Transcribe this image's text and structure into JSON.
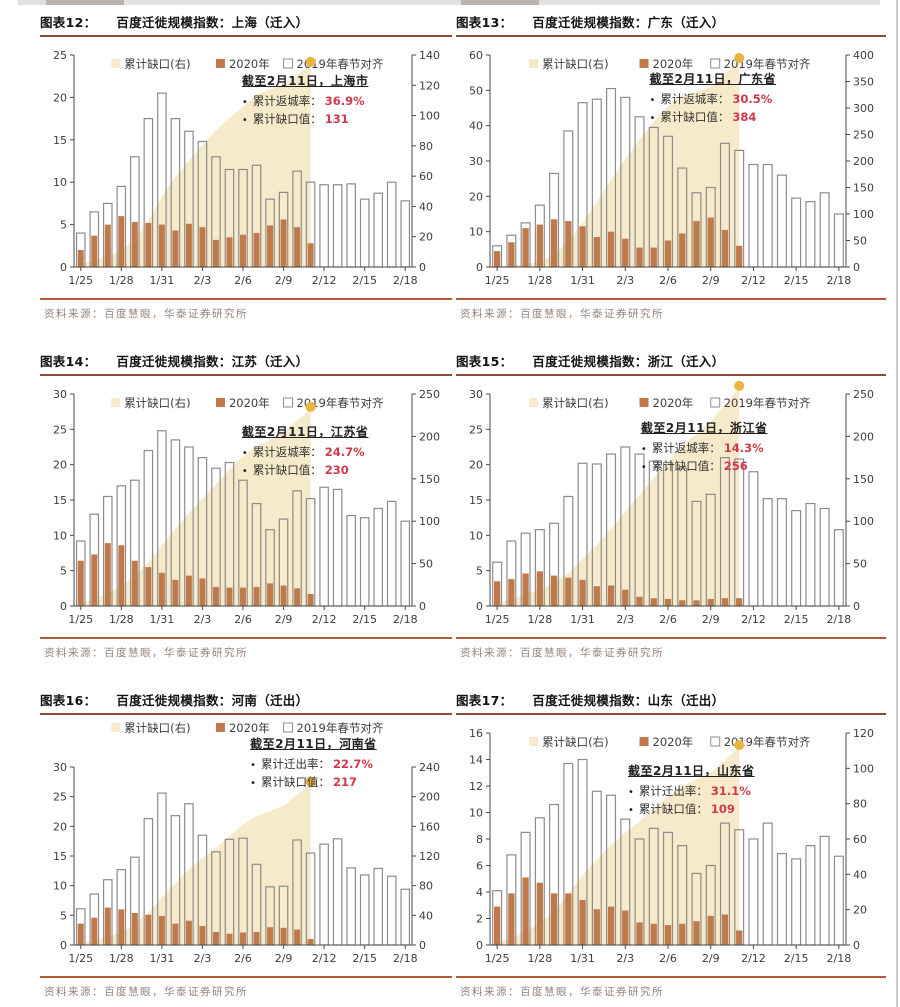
{
  "colors": {
    "bar2020": "#c07a4a",
    "bar2019_stroke": "#8c8c8c",
    "area": "#f7eaca",
    "dot": "#e9b53d",
    "accent_red": "#d03a4c",
    "axis": "#4a4a4a",
    "title_rule": "#8d4a38",
    "source_rule": "#b25a36"
  },
  "chart_shared": {
    "x_dates": [
      "1/25",
      "1/26",
      "1/27",
      "1/28",
      "1/29",
      "1/30",
      "1/31",
      "2/1",
      "2/2",
      "2/3",
      "2/4",
      "2/5",
      "2/6",
      "2/7",
      "2/8",
      "2/9",
      "2/10",
      "2/11",
      "2/12",
      "2/13",
      "2/14",
      "2/15",
      "2/16",
      "2/17",
      "2/18"
    ],
    "x_tick_labels": [
      "1/25",
      "1/28",
      "1/31",
      "2/3",
      "2/6",
      "2/9",
      "2/12",
      "2/15",
      "2/18"
    ],
    "legend": [
      "累计缺口(右)",
      "2020年",
      "2019年春节对齐"
    ],
    "bars_2020_span": "1/25–2/11",
    "area_derivation": "累计缺口 = cumsum(2019年春节对齐 - 2020年), 绘于右轴, 止于2/11"
  },
  "chart_data": [
    {
      "type": "bar",
      "fig_no": "图表12：",
      "title": "百度迁徙规模指数：上海（迁入）",
      "left_axis": {
        "min": 0,
        "max": 25,
        "step": 5
      },
      "right_axis": {
        "min": 0,
        "max": 140,
        "step": 20
      },
      "series": [
        {
          "name": "2019年春节对齐",
          "axis": "left",
          "style": "outline-bar",
          "values": [
            4,
            6.5,
            7.5,
            9.5,
            13,
            17.5,
            20.5,
            17.5,
            16,
            14.8,
            13,
            11.5,
            11.5,
            12,
            8,
            8.8,
            11.3,
            10,
            9.7,
            9.7,
            9.8,
            8,
            8.7,
            10,
            7.8
          ]
        },
        {
          "name": "2020年",
          "axis": "left",
          "style": "solid-bar",
          "values": [
            2,
            3.7,
            5,
            6,
            5.3,
            5.2,
            5,
            4.3,
            5.1,
            4.7,
            3.2,
            3.5,
            3.8,
            4,
            4.9,
            5.6,
            4.7,
            2.8
          ]
        },
        {
          "name": "累计缺口(右)",
          "axis": "right",
          "style": "area",
          "end_value_stated": 131
        }
      ],
      "annotation": {
        "header": "截至2月11日，上海市",
        "lines": [
          {
            "label": "累计返城率：",
            "value": "36.9%"
          },
          {
            "label": "累计缺口值：",
            "value": "131"
          }
        ]
      },
      "source": "资料来源：百度慧眼，华泰证券研究所"
    },
    {
      "type": "bar",
      "fig_no": "图表13：",
      "title": "百度迁徙规模指数：广东（迁入）",
      "left_axis": {
        "min": 0,
        "max": 60,
        "step": 10
      },
      "right_axis": {
        "min": 0,
        "max": 400,
        "step": 50
      },
      "series": [
        {
          "name": "2019年春节对齐",
          "axis": "left",
          "style": "outline-bar",
          "values": [
            6,
            9,
            12.5,
            17.5,
            26.5,
            38.5,
            46.5,
            47.5,
            50.5,
            48,
            42.5,
            39.5,
            37,
            28,
            21,
            22.5,
            35,
            33,
            29,
            29,
            26,
            19.5,
            18.5,
            21,
            15
          ]
        },
        {
          "name": "2020年",
          "axis": "left",
          "style": "solid-bar",
          "values": [
            4.5,
            7,
            11,
            12,
            13.5,
            13,
            11.5,
            8.5,
            10,
            8,
            5.5,
            5.5,
            7.5,
            9.5,
            13,
            14,
            10.5,
            6
          ]
        },
        {
          "name": "累计缺口(右)",
          "axis": "right",
          "style": "area",
          "end_value_stated": 384
        }
      ],
      "annotation": {
        "header": "截至2月11日，广东省",
        "lines": [
          {
            "label": "累计返城率：",
            "value": "30.5%"
          },
          {
            "label": "累计缺口值：",
            "value": "384"
          }
        ]
      },
      "source": "资料来源：百度慧眼，华泰证券研究所"
    },
    {
      "type": "bar",
      "fig_no": "图表14：",
      "title": "百度迁徙规模指数：江苏（迁入）",
      "left_axis": {
        "min": 0,
        "max": 30,
        "step": 5
      },
      "right_axis": {
        "min": 0,
        "max": 250,
        "step": 50
      },
      "series": [
        {
          "name": "2019年春节对齐",
          "axis": "left",
          "style": "outline-bar",
          "values": [
            9.2,
            13,
            15.5,
            17,
            17.8,
            22,
            24.8,
            23.5,
            22.5,
            21,
            19.5,
            20.3,
            17.8,
            14.5,
            10.8,
            12.3,
            16.3,
            15.2,
            16.8,
            16.5,
            12.8,
            12.5,
            13.8,
            14.8,
            12
          ]
        },
        {
          "name": "2020年",
          "axis": "left",
          "style": "solid-bar",
          "values": [
            6.4,
            7.3,
            8.9,
            8.6,
            6.4,
            5.5,
            4.7,
            3.7,
            4.3,
            3.9,
            2.7,
            2.6,
            2.6,
            2.7,
            3.2,
            2.9,
            2.5,
            1.7
          ]
        },
        {
          "name": "累计缺口(右)",
          "axis": "right",
          "style": "area",
          "end_value_stated": 230
        }
      ],
      "annotation": {
        "header": "截至2月11日，江苏省",
        "lines": [
          {
            "label": "累计返城率：",
            "value": "24.7%"
          },
          {
            "label": "累计缺口值：",
            "value": "230"
          }
        ]
      },
      "source": "资料来源：百度慧眼，华泰证券研究所"
    },
    {
      "type": "bar",
      "fig_no": "图表15：",
      "title": "百度迁徙规模指数：浙江（迁入）",
      "left_axis": {
        "min": 0,
        "max": 30,
        "step": 5
      },
      "right_axis": {
        "min": 0,
        "max": 250,
        "step": 50
      },
      "series": [
        {
          "name": "2019年春节对齐",
          "axis": "left",
          "style": "outline-bar",
          "values": [
            6.2,
            9.2,
            10.3,
            10.8,
            11.7,
            15.5,
            20.2,
            20.1,
            21.5,
            22.5,
            21.5,
            20.5,
            20.3,
            19.5,
            14.8,
            15.8,
            21,
            20.8,
            19,
            15.2,
            15.2,
            13.5,
            14.5,
            13.8,
            10.8
          ]
        },
        {
          "name": "2020年",
          "axis": "left",
          "style": "solid-bar",
          "values": [
            3.5,
            3.8,
            4.6,
            4.9,
            4.3,
            4,
            3.7,
            2.8,
            2.9,
            2.3,
            1.3,
            1.1,
            1,
            0.8,
            0.8,
            1,
            1.1,
            1.1
          ]
        },
        {
          "name": "累计缺口(右)",
          "axis": "right",
          "style": "area",
          "end_value_stated": 256
        }
      ],
      "annotation": {
        "header": "截至2月11日，浙江省",
        "lines": [
          {
            "label": "累计返城率：",
            "value": "14.3%"
          },
          {
            "label": "累计缺口值：",
            "value": "256"
          }
        ]
      },
      "source": "资料来源：百度慧眼，华泰证券研究所"
    },
    {
      "type": "bar",
      "fig_no": "图表16：",
      "title": "百度迁徙规模指数：河南（迁出）",
      "left_axis": {
        "min": 0,
        "max": 30,
        "step": 5
      },
      "right_axis": {
        "min": 0,
        "max": 240,
        "step": 40
      },
      "series": [
        {
          "name": "2019年春节对齐",
          "axis": "left",
          "style": "outline-bar",
          "values": [
            6.1,
            8.6,
            11,
            12.7,
            14.8,
            21.3,
            25.6,
            21.8,
            23.8,
            18.5,
            15.7,
            17.8,
            18,
            13.6,
            9.8,
            9.9,
            17.7,
            15.5,
            17,
            17.9,
            13,
            11.8,
            12.9,
            11.6,
            9.4
          ]
        },
        {
          "name": "2020年",
          "axis": "left",
          "style": "solid-bar",
          "values": [
            3.6,
            4.6,
            6.3,
            6,
            5.4,
            5.1,
            4.9,
            3.6,
            4.1,
            3.2,
            2.2,
            1.9,
            2.1,
            2.2,
            3,
            2.9,
            2.6,
            1
          ]
        },
        {
          "name": "累计缺口(右)",
          "axis": "right",
          "style": "area",
          "end_value_stated": 217
        }
      ],
      "annotation": {
        "header": "截至2月11日，河南省",
        "lines": [
          {
            "label": "累计迁出率：",
            "value": "22.7%"
          },
          {
            "label": "累计缺口值：",
            "value": "217"
          }
        ]
      },
      "source": "资料来源：百度慧眼，华泰证券研究所"
    },
    {
      "type": "bar",
      "fig_no": "图表17：",
      "title": "百度迁徙规模指数：山东（迁出）",
      "left_axis": {
        "min": 0,
        "max": 16,
        "step": 2
      },
      "right_axis": {
        "min": 0,
        "max": 120,
        "step": 20
      },
      "series": [
        {
          "name": "2019年春节对齐",
          "axis": "left",
          "style": "outline-bar",
          "values": [
            4.1,
            6.8,
            8.5,
            9.6,
            10.6,
            13.7,
            14,
            11.6,
            11.3,
            9.5,
            8,
            8.8,
            8.5,
            7.5,
            5.4,
            6,
            9.2,
            8.7,
            8,
            9.2,
            6.9,
            6.5,
            7.5,
            8.2,
            6.7
          ]
        },
        {
          "name": "2020年",
          "axis": "left",
          "style": "solid-bar",
          "values": [
            2.9,
            3.9,
            5.1,
            4.7,
            3.9,
            3.9,
            3.4,
            2.7,
            2.9,
            2.6,
            1.7,
            1.6,
            1.5,
            1.6,
            1.8,
            2.2,
            2.3,
            1.1
          ]
        },
        {
          "name": "累计缺口(右)",
          "axis": "right",
          "style": "area",
          "end_value_stated": 109
        }
      ],
      "annotation": {
        "header": "截至2月11日，山东省",
        "lines": [
          {
            "label": "累计迁出率：",
            "value": "31.1%"
          },
          {
            "label": "累计缺口值：",
            "value": "109"
          }
        ]
      },
      "source": "资料来源：百度慧眼，华泰证券研究所"
    }
  ]
}
